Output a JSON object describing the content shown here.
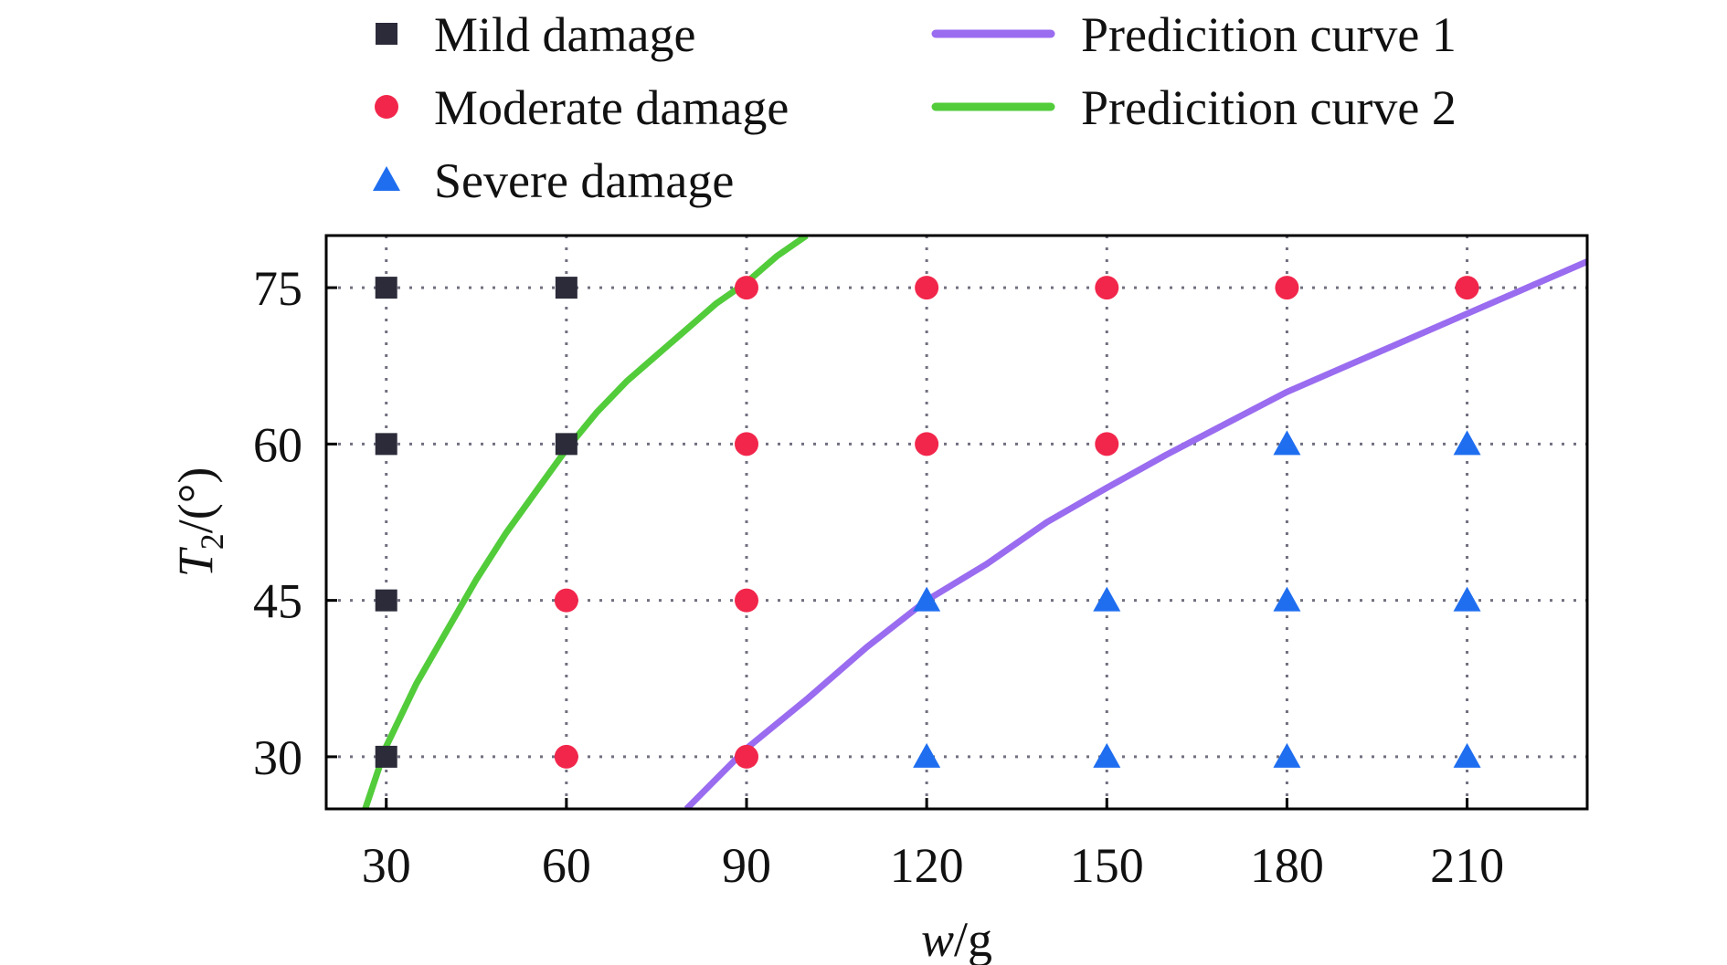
{
  "chart_data": {
    "type": "scatter",
    "title": "",
    "xlabel": {
      "var": "w",
      "unit": "/g"
    },
    "ylabel": {
      "var": "T",
      "sub": "2",
      "unit": "/(°)"
    },
    "xlim": [
      20,
      230
    ],
    "ylim": [
      25,
      80
    ],
    "xticks": [
      30,
      60,
      90,
      120,
      150,
      180,
      210
    ],
    "yticks": [
      30,
      45,
      60,
      75
    ],
    "grid": true,
    "legend": {
      "placement": "top-outside"
    },
    "colors": {
      "mild": "#2b2b3a",
      "moderate": "#f2264b",
      "severe": "#1f6ef0",
      "curve1": "#9a6cf0",
      "curve2": "#52cc3a",
      "grid": "#707080"
    },
    "series": [
      {
        "name": "Mild damage",
        "marker": "square",
        "points": [
          [
            30,
            75
          ],
          [
            60,
            75
          ],
          [
            30,
            60
          ],
          [
            60,
            60
          ],
          [
            30,
            45
          ],
          [
            30,
            30
          ]
        ]
      },
      {
        "name": "Moderate damage",
        "marker": "circle",
        "points": [
          [
            90,
            75
          ],
          [
            120,
            75
          ],
          [
            150,
            75
          ],
          [
            180,
            75
          ],
          [
            210,
            75
          ],
          [
            90,
            60
          ],
          [
            120,
            60
          ],
          [
            150,
            60
          ],
          [
            60,
            45
          ],
          [
            90,
            45
          ],
          [
            60,
            30
          ],
          [
            90,
            30
          ]
        ]
      },
      {
        "name": "Severe damage",
        "marker": "triangle",
        "points": [
          [
            180,
            60
          ],
          [
            210,
            60
          ],
          [
            120,
            45
          ],
          [
            150,
            45
          ],
          [
            180,
            45
          ],
          [
            210,
            45
          ],
          [
            120,
            30
          ],
          [
            150,
            30
          ],
          [
            180,
            30
          ],
          [
            210,
            30
          ]
        ]
      }
    ],
    "curves": [
      {
        "name": "Predicition curve 1",
        "points": [
          [
            80,
            25
          ],
          [
            90,
            30.8
          ],
          [
            100,
            35.5
          ],
          [
            110,
            40.5
          ],
          [
            120,
            45
          ],
          [
            130,
            48.5
          ],
          [
            140,
            52.5
          ],
          [
            150,
            55.8
          ],
          [
            160,
            59
          ],
          [
            170,
            62
          ],
          [
            180,
            65
          ],
          [
            190,
            67.5
          ],
          [
            200,
            70
          ],
          [
            210,
            72.5
          ],
          [
            220,
            75
          ],
          [
            230,
            77.5
          ]
        ]
      },
      {
        "name": "Predicition curve 2",
        "points": [
          [
            26.5,
            25
          ],
          [
            30,
            31
          ],
          [
            35,
            37
          ],
          [
            40,
            42
          ],
          [
            45,
            47
          ],
          [
            50,
            51.5
          ],
          [
            55,
            55.5
          ],
          [
            60,
            59.5
          ],
          [
            65,
            63
          ],
          [
            70,
            66
          ],
          [
            75,
            68.5
          ],
          [
            80,
            71
          ],
          [
            85,
            73.5
          ],
          [
            90,
            75.5
          ],
          [
            95,
            78
          ],
          [
            100,
            80
          ]
        ]
      }
    ]
  }
}
